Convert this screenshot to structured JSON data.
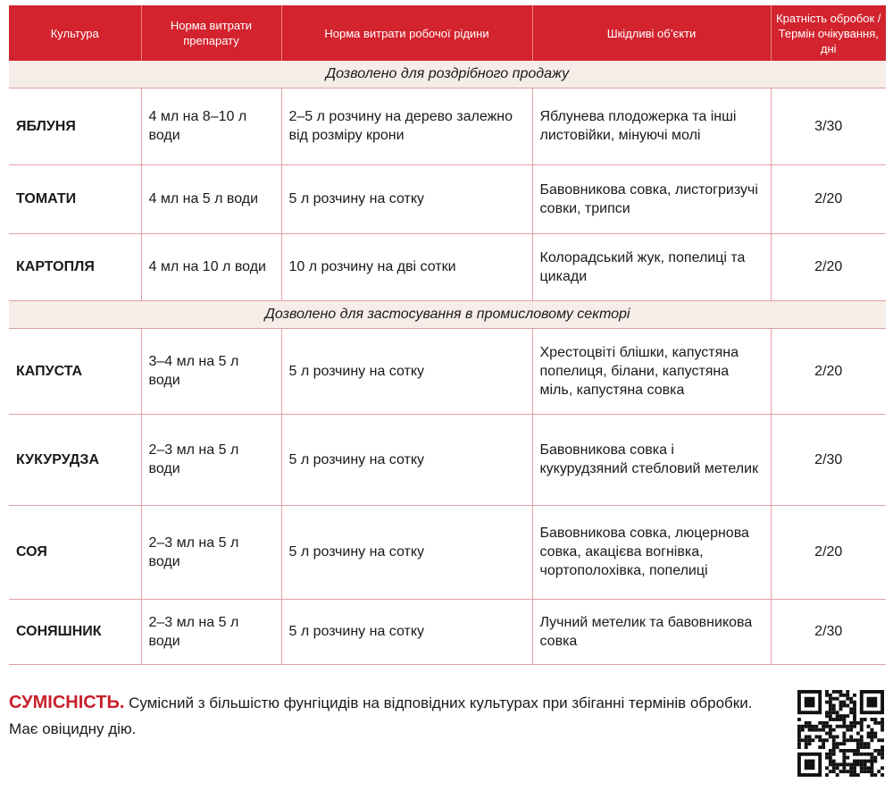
{
  "table": {
    "headers": [
      "Культура",
      "Норма витрати препарату",
      "Норма витрати робочої рідини",
      "Шкідливі об’єкти",
      "Кратність обробок / Термін очікування, дні"
    ],
    "sections": [
      {
        "title": "Дозволено для роздрібного продажу",
        "rows": [
          {
            "crop": "ЯБЛУНЯ",
            "dose": "4 мл на 8–10 л води",
            "liquid": "2–5 л розчину на дерево залежно від розміру крони",
            "pests": "Яблунева плодожерка та інші листовійки, мінуючі молі",
            "freq": "3/30"
          },
          {
            "crop": "ТОМАТИ",
            "dose": "4 мл на 5 л води",
            "liquid": "5 л розчину на сотку",
            "pests": "Бавовникова совка, листогризучі совки, трипси",
            "freq": "2/20"
          },
          {
            "crop": "КАРТОПЛЯ",
            "dose": "4 мл на 10 л води",
            "liquid": "10 л розчину на дві сотки",
            "pests": "Колорадський жук, попелиці та цикади",
            "freq": "2/20"
          }
        ]
      },
      {
        "title": "Дозволено для застосування в промисловому секторі",
        "rows": [
          {
            "crop": "КАПУСТА",
            "dose": "3–4 мл на 5 л води",
            "liquid": "5 л розчину на сотку",
            "pests": "Хрестоцвіті блішки, капустяна попелиця, білани, капустяна міль, капустяна совка",
            "freq": "2/20"
          },
          {
            "crop": "КУКУРУДЗА",
            "dose": "2–3 мл на 5 л води",
            "liquid": "5 л розчину на сотку",
            "pests": "Бавовникова совка і кукурудзяний стебловий метелик",
            "freq": "2/30"
          },
          {
            "crop": "СОЯ",
            "dose": "2–3 мл на 5 л води",
            "liquid": "5 л розчину на сотку",
            "pests": "Бавовникова совка, люцернова совка, акацієва вогнівка, чортополохівка, попелиці",
            "freq": "2/20"
          },
          {
            "crop": "СОНЯШНИК",
            "dose": "2–3 мл на 5 л води",
            "liquid": "5 л розчину на сотку",
            "pests": "Лучний метелик та бавовникова совка",
            "freq": "2/30"
          }
        ]
      }
    ]
  },
  "footer": {
    "title": "СУМІСНІСТЬ.",
    "text": " Сумісний з більшістю фунгіцидів на відповідних культурах при збіганні термінів обробки. Має овіцидну дію."
  },
  "colors": {
    "accent": "#d2232e",
    "section_bg": "#f6ede8"
  }
}
